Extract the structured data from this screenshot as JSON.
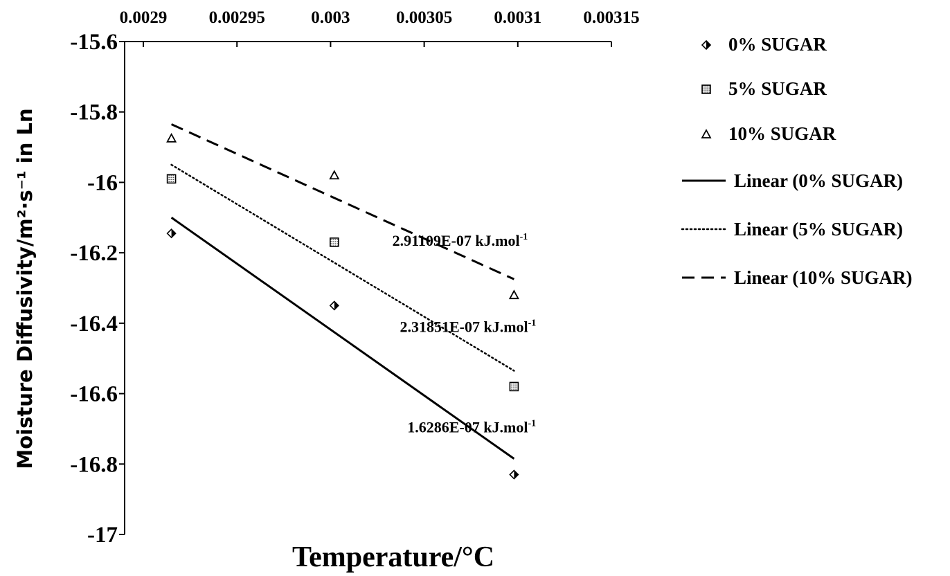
{
  "chart_data": {
    "type": "scatter",
    "title": "",
    "xlabel": "Temperature/°C",
    "ylabel": "Moisture Diffusivity/m²·s⁻¹ in Ln",
    "x_axis_position": "top",
    "xlim": [
      0.00289,
      0.00315
    ],
    "ylim": [
      -17,
      -15.6
    ],
    "x_ticks": [
      {
        "value": 0.0029,
        "label": "0.0029"
      },
      {
        "value": 0.00295,
        "label": "0.00295"
      },
      {
        "value": 0.003,
        "label": "0.003"
      },
      {
        "value": 0.00305,
        "label": "0.00305"
      },
      {
        "value": 0.0031,
        "label": "0.0031"
      },
      {
        "value": 0.00315,
        "label": "0.00315"
      }
    ],
    "y_ticks": [
      {
        "value": -15.6,
        "label": "-15.6"
      },
      {
        "value": -15.8,
        "label": "-15.8"
      },
      {
        "value": -16,
        "label": "-16"
      },
      {
        "value": -16.2,
        "label": "-16.2"
      },
      {
        "value": -16.4,
        "label": "-16.4"
      },
      {
        "value": -16.6,
        "label": "-16.6"
      },
      {
        "value": -16.8,
        "label": "-16.8"
      },
      {
        "value": -17,
        "label": "-17"
      }
    ],
    "grid": false,
    "legend_position": "right",
    "series": [
      {
        "name": "0% SUGAR",
        "marker": "diamond",
        "x": [
          0.002915,
          0.003002,
          0.003098
        ],
        "y": [
          -16.145,
          -16.35,
          -16.83
        ],
        "trendline": {
          "name": "Linear (0% SUGAR)",
          "style": "solid",
          "y_start": -16.1,
          "y_end": -16.785
        }
      },
      {
        "name": "5% SUGAR",
        "marker": "square",
        "x": [
          0.002915,
          0.003002,
          0.003098
        ],
        "y": [
          -15.99,
          -16.17,
          -16.58
        ],
        "trendline": {
          "name": "Linear (5% SUGAR)",
          "style": "dotted",
          "y_start": -15.95,
          "y_end": -16.535
        }
      },
      {
        "name": "10% SUGAR",
        "marker": "triangle",
        "x": [
          0.002915,
          0.003002,
          0.003098
        ],
        "y": [
          -15.875,
          -15.98,
          -16.32
        ],
        "trendline": {
          "name": "Linear (10% SUGAR)",
          "style": "dashed",
          "y_start": -15.835,
          "y_end": -16.275
        }
      }
    ],
    "annotations": [
      {
        "text": "2.91109E-07  kJ.mol",
        "sup": "-1",
        "x": 0.003033,
        "y": -16.18
      },
      {
        "text": "2.31851E-07  kJ.mol",
        "sup": "-1",
        "x": 0.003037,
        "y": -16.425
      },
      {
        "text": "1.6286E-07  kJ.mol",
        "sup": "-1",
        "x": 0.003041,
        "y": -16.71
      }
    ]
  }
}
